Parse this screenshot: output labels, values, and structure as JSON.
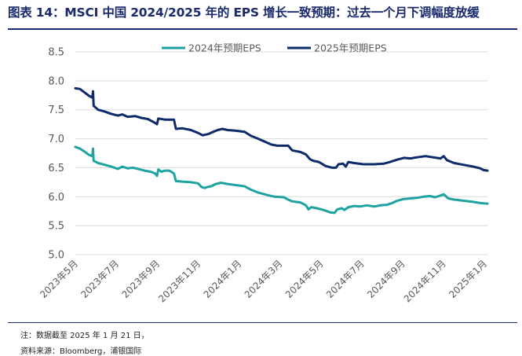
{
  "header": {
    "title": "图表 14：MSCI 中国 2024/2025 年的 EPS 增长一致预期：过去一个月下调幅度放缓"
  },
  "footer": {
    "note": "注：数据截至 2025 年 1 月 21 日，",
    "source": "资料来源：Bloomberg，浦银国际"
  },
  "colors": {
    "series_2024": "#1fa3a0",
    "series_2025": "#0d2a6b",
    "grid": "#d9d9d9",
    "rule": "#1a2a6c"
  },
  "chart_data": {
    "type": "line",
    "title": "",
    "xlabel": "",
    "ylabel": "",
    "ylim": [
      5.0,
      8.5
    ],
    "yticks": [
      "8.5",
      "8.0",
      "7.5",
      "7.0",
      "6.5",
      "6.0",
      "5.5",
      "5.0"
    ],
    "xtick_labels": [
      "2023年5月",
      "2023年7月",
      "2023年9月",
      "2023年11月",
      "2024年1月",
      "2024年3月",
      "2024年5月",
      "2024年7月",
      "2024年9月",
      "2024年11月",
      "2025年1月"
    ],
    "xlim": [
      "2023-05-01",
      "2025-01-21"
    ],
    "grid": "horizontal",
    "legend_position": "top",
    "series": [
      {
        "name": "2024年预期EPS",
        "color": "#1fa3a0",
        "points": [
          [
            "2023-05-01",
            6.86
          ],
          [
            "2023-05-08",
            6.83
          ],
          [
            "2023-05-15",
            6.78
          ],
          [
            "2023-05-22",
            6.72
          ],
          [
            "2023-05-27",
            6.7
          ],
          [
            "2023-05-28",
            6.83
          ],
          [
            "2023-05-29",
            6.62
          ],
          [
            "2023-06-05",
            6.58
          ],
          [
            "2023-06-15",
            6.55
          ],
          [
            "2023-06-25",
            6.52
          ],
          [
            "2023-07-05",
            6.48
          ],
          [
            "2023-07-12",
            6.52
          ],
          [
            "2023-07-20",
            6.49
          ],
          [
            "2023-07-28",
            6.5
          ],
          [
            "2023-08-05",
            6.48
          ],
          [
            "2023-08-15",
            6.45
          ],
          [
            "2023-08-25",
            6.43
          ],
          [
            "2023-08-31",
            6.4
          ],
          [
            "2023-09-03",
            6.36
          ],
          [
            "2023-09-05",
            6.47
          ],
          [
            "2023-09-10",
            6.43
          ],
          [
            "2023-09-15",
            6.45
          ],
          [
            "2023-09-22",
            6.45
          ],
          [
            "2023-09-29",
            6.4
          ],
          [
            "2023-10-02",
            6.27
          ],
          [
            "2023-10-12",
            6.26
          ],
          [
            "2023-10-25",
            6.25
          ],
          [
            "2023-11-05",
            6.23
          ],
          [
            "2023-11-10",
            6.17
          ],
          [
            "2023-11-15",
            6.15
          ],
          [
            "2023-11-20",
            6.17
          ],
          [
            "2023-11-25",
            6.18
          ],
          [
            "2023-12-02",
            6.22
          ],
          [
            "2023-12-10",
            6.24
          ],
          [
            "2023-12-20",
            6.22
          ],
          [
            "2024-01-01",
            6.2
          ],
          [
            "2024-01-15",
            6.18
          ],
          [
            "2024-01-25",
            6.12
          ],
          [
            "2024-02-05",
            6.07
          ],
          [
            "2024-02-15",
            6.04
          ],
          [
            "2024-02-22",
            6.02
          ],
          [
            "2024-03-01",
            6.0
          ],
          [
            "2024-03-15",
            5.99
          ],
          [
            "2024-03-22",
            5.95
          ],
          [
            "2024-03-28",
            5.92
          ],
          [
            "2024-04-10",
            5.9
          ],
          [
            "2024-04-18",
            5.85
          ],
          [
            "2024-04-22",
            5.78
          ],
          [
            "2024-04-26",
            5.82
          ],
          [
            "2024-05-05",
            5.8
          ],
          [
            "2024-05-15",
            5.77
          ],
          [
            "2024-05-25",
            5.73
          ],
          [
            "2024-06-01",
            5.72
          ],
          [
            "2024-06-05",
            5.78
          ],
          [
            "2024-06-12",
            5.8
          ],
          [
            "2024-06-16",
            5.77
          ],
          [
            "2024-06-22",
            5.82
          ],
          [
            "2024-07-01",
            5.84
          ],
          [
            "2024-07-10",
            5.83
          ],
          [
            "2024-07-20",
            5.85
          ],
          [
            "2024-08-01",
            5.83
          ],
          [
            "2024-08-10",
            5.85
          ],
          [
            "2024-08-20",
            5.86
          ],
          [
            "2024-08-28",
            5.89
          ],
          [
            "2024-09-05",
            5.93
          ],
          [
            "2024-09-15",
            5.96
          ],
          [
            "2024-09-25",
            5.97
          ],
          [
            "2024-10-05",
            5.98
          ],
          [
            "2024-10-15",
            6.0
          ],
          [
            "2024-10-25",
            6.01
          ],
          [
            "2024-11-02",
            5.99
          ],
          [
            "2024-11-10",
            6.02
          ],
          [
            "2024-11-15",
            6.04
          ],
          [
            "2024-11-22",
            5.97
          ],
          [
            "2024-12-01",
            5.95
          ],
          [
            "2024-12-15",
            5.93
          ],
          [
            "2024-12-30",
            5.91
          ],
          [
            "2025-01-10",
            5.89
          ],
          [
            "2025-01-21",
            5.88
          ]
        ]
      },
      {
        "name": "2025年预期EPS",
        "color": "#0d2a6b",
        "points": [
          [
            "2023-05-01",
            7.87
          ],
          [
            "2023-05-08",
            7.86
          ],
          [
            "2023-05-15",
            7.8
          ],
          [
            "2023-05-22",
            7.74
          ],
          [
            "2023-05-27",
            7.71
          ],
          [
            "2023-05-28",
            7.82
          ],
          [
            "2023-05-29",
            7.57
          ],
          [
            "2023-06-05",
            7.5
          ],
          [
            "2023-06-15",
            7.47
          ],
          [
            "2023-06-25",
            7.43
          ],
          [
            "2023-07-05",
            7.4
          ],
          [
            "2023-07-12",
            7.42
          ],
          [
            "2023-07-20",
            7.38
          ],
          [
            "2023-08-01",
            7.39
          ],
          [
            "2023-08-10",
            7.36
          ],
          [
            "2023-08-20",
            7.34
          ],
          [
            "2023-08-30",
            7.28
          ],
          [
            "2023-09-03",
            7.25
          ],
          [
            "2023-09-05",
            7.35
          ],
          [
            "2023-09-15",
            7.33
          ],
          [
            "2023-09-29",
            7.33
          ],
          [
            "2023-10-02",
            7.17
          ],
          [
            "2023-10-12",
            7.18
          ],
          [
            "2023-10-25",
            7.15
          ],
          [
            "2023-11-05",
            7.1
          ],
          [
            "2023-11-12",
            7.06
          ],
          [
            "2023-11-20",
            7.08
          ],
          [
            "2023-11-28",
            7.12
          ],
          [
            "2023-12-05",
            7.15
          ],
          [
            "2023-12-12",
            7.17
          ],
          [
            "2023-12-20",
            7.15
          ],
          [
            "2024-01-01",
            7.14
          ],
          [
            "2024-01-15",
            7.12
          ],
          [
            "2024-01-25",
            7.05
          ],
          [
            "2024-02-05",
            7.0
          ],
          [
            "2024-02-15",
            6.95
          ],
          [
            "2024-02-25",
            6.9
          ],
          [
            "2024-03-05",
            6.88
          ],
          [
            "2024-03-22",
            6.88
          ],
          [
            "2024-03-28",
            6.8
          ],
          [
            "2024-04-10",
            6.77
          ],
          [
            "2024-04-18",
            6.73
          ],
          [
            "2024-04-24",
            6.65
          ],
          [
            "2024-04-29",
            6.62
          ],
          [
            "2024-05-08",
            6.6
          ],
          [
            "2024-05-18",
            6.53
          ],
          [
            "2024-05-28",
            6.5
          ],
          [
            "2024-06-03",
            6.5
          ],
          [
            "2024-06-07",
            6.56
          ],
          [
            "2024-06-14",
            6.57
          ],
          [
            "2024-06-18",
            6.52
          ],
          [
            "2024-06-22",
            6.6
          ],
          [
            "2024-07-01",
            6.58
          ],
          [
            "2024-07-15",
            6.56
          ],
          [
            "2024-08-01",
            6.56
          ],
          [
            "2024-08-15",
            6.57
          ],
          [
            "2024-08-25",
            6.6
          ],
          [
            "2024-09-05",
            6.64
          ],
          [
            "2024-09-15",
            6.67
          ],
          [
            "2024-09-25",
            6.66
          ],
          [
            "2024-10-05",
            6.68
          ],
          [
            "2024-10-18",
            6.7
          ],
          [
            "2024-10-30",
            6.68
          ],
          [
            "2024-11-10",
            6.66
          ],
          [
            "2024-11-15",
            6.7
          ],
          [
            "2024-11-20",
            6.63
          ],
          [
            "2024-12-01",
            6.58
          ],
          [
            "2024-12-15",
            6.55
          ],
          [
            "2024-12-30",
            6.52
          ],
          [
            "2025-01-10",
            6.49
          ],
          [
            "2025-01-15",
            6.46
          ],
          [
            "2025-01-21",
            6.45
          ]
        ]
      }
    ]
  }
}
